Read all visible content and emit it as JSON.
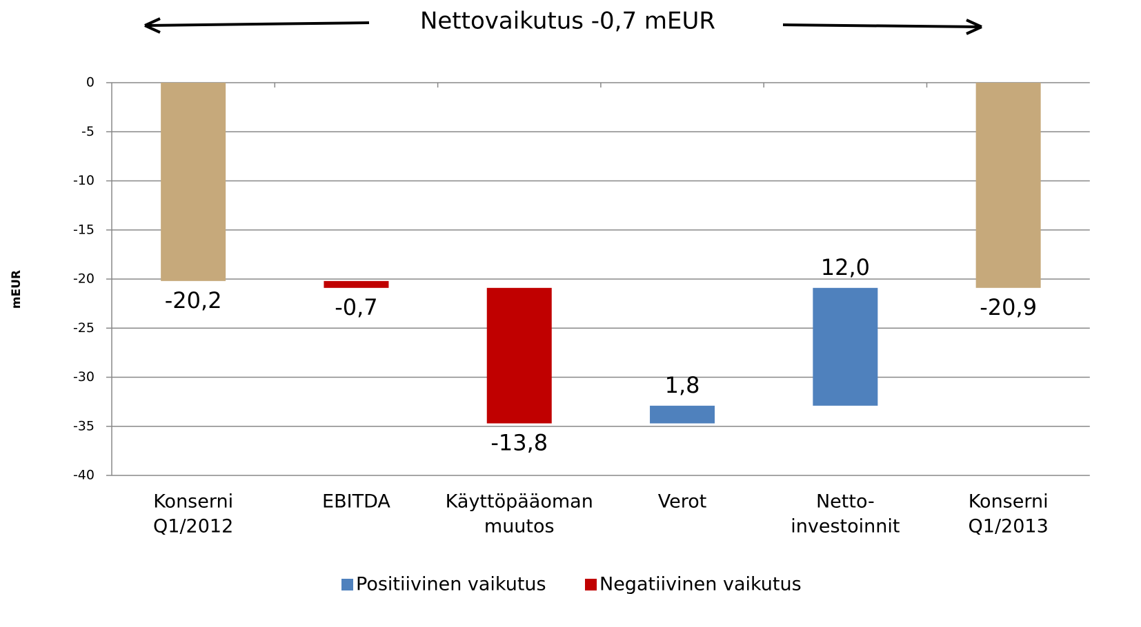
{
  "chart_data": {
    "type": "waterfall",
    "title": "Nettovaikutus -0,7 mEUR",
    "y_label": "mEUR",
    "categories": [
      [
        "Konserni",
        "Q1/2012"
      ],
      [
        "EBITDA"
      ],
      [
        "Käyttöpääoman",
        "muutos"
      ],
      [
        "Verot"
      ],
      [
        "Netto-",
        "investoinnit"
      ],
      [
        "Konserni",
        "Q1/2013"
      ]
    ],
    "values": [
      -20.2,
      -0.7,
      -13.8,
      1.8,
      12.0,
      -20.9
    ],
    "value_labels": [
      "-20,2",
      "-0,7",
      "-13,8",
      "1,8",
      "12,0",
      "-20,9"
    ],
    "total_color": "#c6a97b",
    "legend": [
      {
        "name": "Positiivinen vaikutus",
        "color": "#4f81bd"
      },
      {
        "name": "Negatiivinen vaikutus",
        "color": "#c00000"
      }
    ],
    "ylim": [
      -40,
      0
    ],
    "yticks": [
      0,
      -5,
      -10,
      -15,
      -20,
      -25,
      -30,
      -35,
      -40
    ],
    "grid": true
  }
}
